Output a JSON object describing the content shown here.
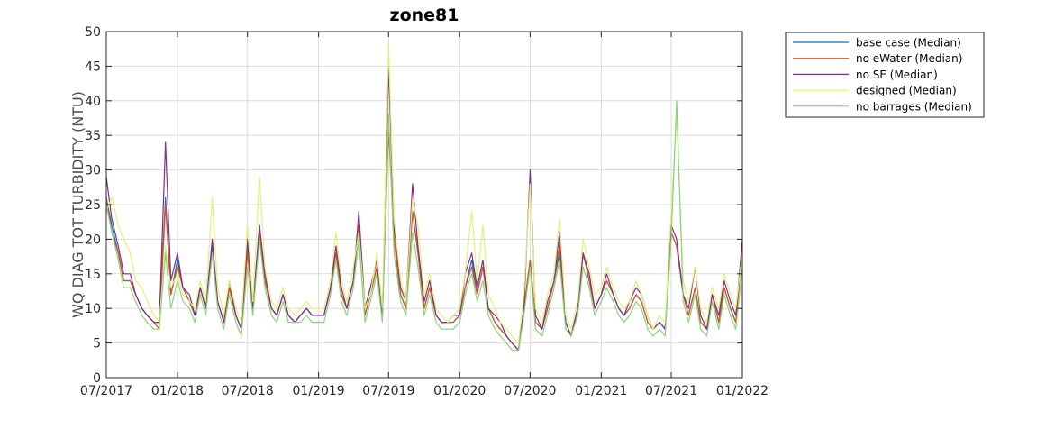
{
  "chart_data": {
    "type": "line",
    "title": "zone81",
    "xlabel": "",
    "ylabel": "WQ DIAG TOT TURBIDITY (NTU)",
    "ylim": [
      0,
      50
    ],
    "xlim": [
      "2017-07-01",
      "2022-01-01"
    ],
    "grid": true,
    "legend_position": "outside-top-right",
    "x_tick_labels": [
      "07/2017",
      "01/2018",
      "07/2018",
      "01/2019",
      "07/2019",
      "01/2020",
      "07/2020",
      "01/2021",
      "07/2021",
      "01/2022"
    ],
    "y_tick_labels": [
      "0",
      "5",
      "10",
      "15",
      "20",
      "25",
      "30",
      "35",
      "40",
      "45",
      "50"
    ],
    "x": [
      "2017-07-01",
      "2017-07-15",
      "2017-08-01",
      "2017-08-15",
      "2017-09-01",
      "2017-09-15",
      "2017-10-01",
      "2017-10-15",
      "2017-11-01",
      "2017-11-15",
      "2017-12-01",
      "2017-12-15",
      "2018-01-01",
      "2018-01-15",
      "2018-02-01",
      "2018-02-15",
      "2018-03-01",
      "2018-03-15",
      "2018-04-01",
      "2018-04-15",
      "2018-05-01",
      "2018-05-15",
      "2018-06-01",
      "2018-06-15",
      "2018-07-01",
      "2018-07-15",
      "2018-08-01",
      "2018-08-15",
      "2018-09-01",
      "2018-09-15",
      "2018-10-01",
      "2018-10-15",
      "2018-11-01",
      "2018-11-15",
      "2018-12-01",
      "2018-12-15",
      "2019-01-01",
      "2019-01-15",
      "2019-02-01",
      "2019-02-15",
      "2019-03-01",
      "2019-03-15",
      "2019-04-01",
      "2019-04-15",
      "2019-05-01",
      "2019-05-15",
      "2019-06-01",
      "2019-06-15",
      "2019-07-01",
      "2019-07-15",
      "2019-08-01",
      "2019-08-15",
      "2019-09-01",
      "2019-09-15",
      "2019-10-01",
      "2019-10-15",
      "2019-11-01",
      "2019-11-15",
      "2019-12-01",
      "2019-12-15",
      "2020-01-01",
      "2020-01-15",
      "2020-02-01",
      "2020-02-15",
      "2020-03-01",
      "2020-03-15",
      "2020-04-01",
      "2020-04-15",
      "2020-05-01",
      "2020-05-15",
      "2020-06-01",
      "2020-06-15",
      "2020-07-01",
      "2020-07-15",
      "2020-08-01",
      "2020-08-15",
      "2020-09-01",
      "2020-09-15",
      "2020-10-01",
      "2020-10-15",
      "2020-11-01",
      "2020-11-15",
      "2020-12-01",
      "2020-12-15",
      "2021-01-01",
      "2021-01-15",
      "2021-02-01",
      "2021-02-15",
      "2021-03-01",
      "2021-03-15",
      "2021-04-01",
      "2021-04-15",
      "2021-05-01",
      "2021-05-15",
      "2021-06-01",
      "2021-06-15",
      "2021-07-01",
      "2021-07-15",
      "2021-08-01",
      "2021-08-15",
      "2021-09-01",
      "2021-09-15",
      "2021-10-01",
      "2021-10-15",
      "2021-11-01",
      "2021-11-15",
      "2021-12-01",
      "2021-12-15",
      "2022-01-01"
    ],
    "series": [
      {
        "name": "base case (Median)",
        "color": "#0072bd",
        "values": [
          26,
          22,
          18,
          14,
          14,
          12,
          10,
          9,
          8,
          8,
          26,
          12,
          17,
          13,
          11,
          9,
          13,
          10,
          19,
          11,
          8,
          13,
          9,
          7,
          19,
          10,
          22,
          14,
          10,
          9,
          12,
          9,
          8,
          9,
          10,
          9,
          9,
          9,
          13,
          18,
          12,
          10,
          14,
          22,
          9,
          12,
          16,
          9,
          37,
          20,
          12,
          10,
          24,
          18,
          10,
          13,
          9,
          8,
          8,
          8,
          9,
          13,
          17,
          12,
          16,
          10,
          8,
          7,
          6,
          5,
          4,
          10,
          17,
          8,
          7,
          10,
          14,
          18,
          8,
          6,
          10,
          18,
          14,
          10,
          12,
          14,
          12,
          10,
          9,
          10,
          12,
          11,
          8,
          7,
          8,
          7,
          21,
          19,
          12,
          9,
          13,
          8,
          7,
          12,
          8,
          13,
          10,
          8,
          19
        ]
      },
      {
        "name": "no eWater (Median)",
        "color": "#d95319",
        "values": [
          26,
          21,
          18,
          14,
          14,
          12,
          10,
          9,
          8,
          7,
          25,
          12,
          16,
          13,
          11,
          9,
          13,
          10,
          18,
          11,
          8,
          13,
          9,
          7,
          18,
          10,
          21,
          14,
          10,
          9,
          12,
          9,
          8,
          9,
          10,
          9,
          9,
          9,
          13,
          18,
          12,
          10,
          14,
          22,
          9,
          12,
          16,
          9,
          36,
          20,
          12,
          10,
          24,
          18,
          10,
          13,
          9,
          8,
          8,
          8,
          9,
          13,
          16,
          12,
          16,
          10,
          8,
          7,
          6,
          5,
          4,
          10,
          17,
          8,
          7,
          10,
          14,
          19,
          8,
          6,
          10,
          18,
          14,
          10,
          12,
          14,
          12,
          10,
          9,
          10,
          12,
          11,
          8,
          7,
          8,
          7,
          21,
          19,
          12,
          9,
          13,
          8,
          7,
          12,
          8,
          13,
          10,
          8,
          19
        ]
      },
      {
        "name": "no SE (Median)",
        "color": "#7e2f8e",
        "values": [
          29,
          23,
          19,
          15,
          15,
          12,
          10,
          9,
          8,
          8,
          34,
          14,
          18,
          13,
          12,
          9,
          13,
          10,
          20,
          11,
          8,
          14,
          9,
          7,
          20,
          10,
          22,
          15,
          10,
          9,
          12,
          9,
          8,
          9,
          10,
          9,
          9,
          9,
          13,
          19,
          13,
          10,
          14,
          24,
          10,
          13,
          17,
          9,
          45,
          22,
          13,
          11,
          28,
          19,
          11,
          14,
          9,
          8,
          8,
          9,
          9,
          15,
          18,
          13,
          17,
          10,
          9,
          8,
          6,
          5,
          4,
          10,
          30,
          9,
          7,
          11,
          14,
          21,
          8,
          6,
          10,
          18,
          15,
          10,
          12,
          15,
          12,
          10,
          9,
          11,
          13,
          12,
          9,
          7,
          8,
          7,
          22,
          20,
          12,
          10,
          16,
          9,
          7,
          12,
          9,
          14,
          11,
          9,
          20
        ]
      },
      {
        "name": "designed (Median)",
        "color": "#e0f079",
        "values": [
          24,
          26,
          22,
          20,
          18,
          14,
          13,
          11,
          9,
          8,
          19,
          13,
          15,
          12,
          11,
          10,
          14,
          11,
          26,
          13,
          9,
          14,
          10,
          8,
          22,
          11,
          29,
          16,
          11,
          10,
          13,
          10,
          9,
          10,
          11,
          10,
          10,
          10,
          14,
          21,
          14,
          11,
          16,
          21,
          10,
          12,
          18,
          10,
          48,
          23,
          14,
          11,
          26,
          22,
          12,
          15,
          10,
          9,
          8,
          9,
          10,
          15,
          24,
          14,
          22,
          12,
          10,
          8,
          7,
          6,
          5,
          12,
          28,
          10,
          8,
          12,
          15,
          23,
          9,
          7,
          11,
          20,
          16,
          12,
          13,
          16,
          13,
          11,
          10,
          11,
          14,
          12,
          9,
          7,
          9,
          8,
          24,
          38,
          14,
          11,
          16,
          10,
          8,
          13,
          10,
          15,
          12,
          10,
          18
        ]
      },
      {
        "name": "no barrages (Median)",
        "color": "#8cd27a",
        "values": [
          25,
          21,
          17,
          13,
          13,
          11,
          9,
          8,
          7,
          7,
          18,
          10,
          14,
          11,
          10,
          8,
          12,
          9,
          18,
          10,
          7,
          12,
          8,
          6,
          16,
          9,
          20,
          13,
          9,
          8,
          11,
          8,
          8,
          8,
          9,
          8,
          8,
          8,
          12,
          17,
          11,
          9,
          13,
          20,
          8,
          11,
          15,
          8,
          38,
          18,
          11,
          9,
          21,
          16,
          9,
          12,
          8,
          7,
          7,
          7,
          8,
          12,
          15,
          11,
          14,
          9,
          7,
          6,
          5,
          4,
          4,
          9,
          16,
          7,
          6,
          9,
          13,
          17,
          7,
          6,
          9,
          16,
          13,
          9,
          11,
          13,
          11,
          9,
          8,
          9,
          11,
          10,
          7,
          6,
          7,
          6,
          20,
          40,
          11,
          8,
          12,
          7,
          6,
          11,
          7,
          12,
          9,
          7,
          16
        ]
      }
    ]
  }
}
